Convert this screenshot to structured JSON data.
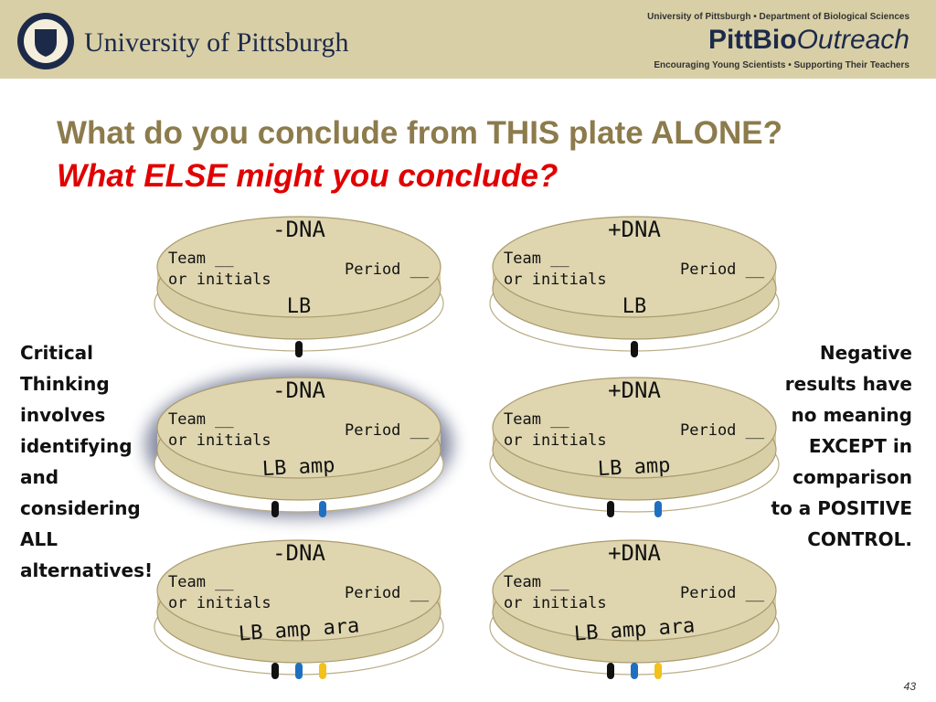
{
  "header": {
    "university": "University of Pittsburgh",
    "department": "University of Pittsburgh • Department of Biological Sciences",
    "program_a": "PittBio",
    "program_b": "Outreach",
    "tagline": "Encouraging Young Scientists • Supporting Their Teachers"
  },
  "title": {
    "line1": "What do you conclude from THIS plate ALONE?",
    "line2": "What ELSE might you conclude?"
  },
  "plates": [
    {
      "dna": "-DNA",
      "team": "Team __",
      "initials": "or initials",
      "period": "Period __",
      "medium": "LB"
    },
    {
      "dna": "+DNA",
      "team": "Team __",
      "initials": "or initials",
      "period": "Period __",
      "medium": "LB"
    },
    {
      "dna": "-DNA",
      "team": "Team __",
      "initials": "or initials",
      "period": "Period __",
      "medium": "LB amp"
    },
    {
      "dna": "+DNA",
      "team": "Team __",
      "initials": "or initials",
      "period": "Period __",
      "medium": "LB amp"
    },
    {
      "dna": "-DNA",
      "team": "Team __",
      "initials": "or initials",
      "period": "Period __",
      "medium": "LB amp ara"
    },
    {
      "dna": "+DNA",
      "team": "Team __",
      "initials": "or initials",
      "period": "Period __",
      "medium": "LB amp ara"
    }
  ],
  "left_note": [
    "Critical",
    "Thinking",
    "involves",
    "identifying",
    "and",
    "considering",
    "ALL",
    "alternatives!"
  ],
  "right_note": [
    "Negative",
    "results have",
    "no meaning",
    "EXCEPT in",
    "comparison",
    "to a POSITIVE",
    "CONTROL."
  ],
  "page_number": "43"
}
